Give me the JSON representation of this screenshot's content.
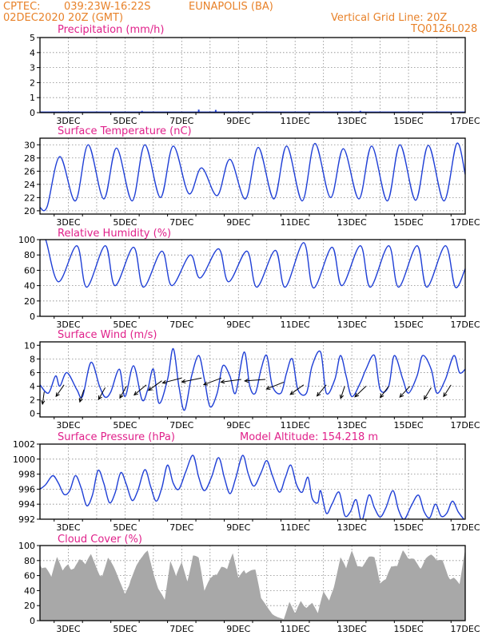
{
  "header": {
    "source": "CPTEC:",
    "coords": "039:23W-16:22S",
    "location": "EUNAPOLIS (BA)",
    "datetime": "02DEC2020 20Z (GMT)",
    "grid_note": "Vertical Grid Line: 20Z",
    "code": "TQ0126L028"
  },
  "colors": {
    "header_text": "#e8822a",
    "title_text": "#e0208a",
    "series_line": "#1f3fd6",
    "cloud_fill": "#a8a8a8",
    "wind_arrow": "#000000"
  },
  "chart_data": [
    {
      "type": "bar",
      "title": "Precipitation (mm/h)",
      "ylim": [
        0,
        5
      ],
      "yticks": [
        "0",
        "1",
        "2",
        "3",
        "4",
        "5"
      ],
      "grid": true,
      "x_labels": [
        "3DEC",
        "5DEC",
        "7DEC",
        "9DEC",
        "11DEC",
        "13DEC",
        "15DEC",
        "17DEC"
      ],
      "spikes": [
        {
          "day": 5.6,
          "value": 0.12
        },
        {
          "day": 7.6,
          "value": 0.2
        },
        {
          "day": 8.2,
          "value": 0.18
        },
        {
          "day": 13.3,
          "value": 0.12
        }
      ],
      "series_values": [
        0,
        0.05,
        0.03,
        0.04,
        0.05,
        0.03,
        0.04,
        0.05,
        0.03,
        0.04,
        0.05,
        0.04,
        0.05,
        0.04,
        0.05,
        0.03
      ]
    },
    {
      "type": "line",
      "title": "Surface Temperature (nC)",
      "ylim": [
        19.5,
        31
      ],
      "yticks": [
        "20",
        "22",
        "24",
        "26",
        "28",
        "30"
      ],
      "grid": true,
      "x_labels": [
        "3DEC",
        "5DEC",
        "7DEC",
        "9DEC",
        "11DEC",
        "13DEC",
        "15DEC",
        "17DEC"
      ],
      "max_days": [
        2.7,
        3.7,
        4.7,
        5.7,
        6.7,
        7.7,
        8.7,
        9.7,
        10.7,
        11.7,
        12.7,
        13.7,
        14.7,
        15.7,
        16.7
      ],
      "max_values": [
        28.2,
        30.0,
        29.5,
        30.0,
        29.8,
        26.5,
        27.8,
        29.6,
        29.8,
        30.2,
        29.4,
        29.8,
        30.0,
        29.9,
        30.2
      ],
      "min_days": [
        2.25,
        3.25,
        4.25,
        5.25,
        6.25,
        7.25,
        8.25,
        9.25,
        10.25,
        11.25,
        12.25,
        13.25,
        14.25,
        15.25,
        16.25
      ],
      "min_values": [
        20.6,
        21.5,
        21.8,
        21.5,
        22.0,
        22.6,
        22.3,
        21.8,
        21.8,
        21.5,
        22.0,
        21.8,
        21.5,
        21.6,
        21.5
      ],
      "start": {
        "day": 2.0,
        "value": 20.5
      },
      "end": {
        "day": 17.0,
        "value": 25.5
      }
    },
    {
      "type": "line",
      "title": "Relative Humidity (%)",
      "ylim": [
        0,
        100
      ],
      "yticks": [
        "0",
        "20",
        "40",
        "60",
        "80",
        "100"
      ],
      "grid": true,
      "x_labels": [
        "3DEC",
        "5DEC",
        "7DEC",
        "9DEC",
        "11DEC",
        "13DEC",
        "15DEC",
        "17DEC"
      ],
      "max_days": [
        2.2,
        3.3,
        4.3,
        5.3,
        6.3,
        7.3,
        8.3,
        9.3,
        10.3,
        11.3,
        12.3,
        13.3,
        14.3,
        15.3,
        16.3
      ],
      "max_values": [
        100,
        92,
        92,
        90,
        85,
        80,
        88,
        85,
        86,
        96,
        90,
        92,
        92,
        92,
        92
      ],
      "min_days": [
        2.65,
        3.65,
        4.65,
        5.65,
        6.65,
        7.65,
        8.65,
        9.65,
        10.65,
        11.65,
        12.65,
        13.65,
        14.65,
        15.65,
        16.65
      ],
      "min_values": [
        45,
        38,
        40,
        38,
        40,
        50,
        45,
        38,
        38,
        37,
        40,
        38,
        38,
        38,
        38
      ],
      "start": {
        "day": 2.0,
        "value": 100
      },
      "end": {
        "day": 17.0,
        "value": 62
      }
    },
    {
      "type": "line",
      "title": "Surface Wind (m/s)",
      "ylim": [
        -0.5,
        10.5
      ],
      "yticks": [
        "0",
        "2",
        "4",
        "6",
        "8",
        "10"
      ],
      "grid": true,
      "x_labels": [
        "3DEC",
        "5DEC",
        "7DEC",
        "9DEC",
        "11DEC",
        "13DEC",
        "15DEC",
        "17DEC"
      ],
      "points": [
        [
          2.0,
          4.2
        ],
        [
          2.3,
          3.0
        ],
        [
          2.55,
          5.5
        ],
        [
          2.7,
          4.0
        ],
        [
          2.95,
          6.0
        ],
        [
          3.3,
          3.5
        ],
        [
          3.5,
          2.5
        ],
        [
          3.8,
          7.5
        ],
        [
          4.1,
          4.0
        ],
        [
          4.3,
          2.4
        ],
        [
          4.5,
          3.2
        ],
        [
          4.8,
          6.5
        ],
        [
          5.0,
          2.5
        ],
        [
          5.3,
          7.0
        ],
        [
          5.6,
          2.0
        ],
        [
          5.8,
          3.5
        ],
        [
          6.0,
          6.5
        ],
        [
          6.2,
          1.5
        ],
        [
          6.5,
          5.0
        ],
        [
          6.7,
          9.5
        ],
        [
          6.9,
          4.0
        ],
        [
          7.1,
          0.5
        ],
        [
          7.35,
          5.5
        ],
        [
          7.6,
          8.5
        ],
        [
          7.8,
          5.0
        ],
        [
          8.0,
          1.0
        ],
        [
          8.25,
          3.0
        ],
        [
          8.45,
          7.0
        ],
        [
          8.7,
          5.5
        ],
        [
          8.9,
          3.0
        ],
        [
          9.2,
          9.0
        ],
        [
          9.4,
          4.0
        ],
        [
          9.6,
          3.0
        ],
        [
          9.8,
          6.5
        ],
        [
          10.0,
          8.5
        ],
        [
          10.2,
          4.0
        ],
        [
          10.5,
          3.0
        ],
        [
          10.7,
          6.0
        ],
        [
          10.9,
          8.0
        ],
        [
          11.1,
          3.5
        ],
        [
          11.4,
          3.0
        ],
        [
          11.6,
          7.0
        ],
        [
          11.9,
          9.0
        ],
        [
          12.1,
          3.0
        ],
        [
          12.4,
          5.0
        ],
        [
          12.6,
          8.5
        ],
        [
          12.8,
          5.5
        ],
        [
          13.0,
          2.5
        ],
        [
          13.3,
          4.5
        ],
        [
          13.5,
          6.5
        ],
        [
          13.8,
          8.5
        ],
        [
          14.0,
          3.5
        ],
        [
          14.3,
          4.0
        ],
        [
          14.5,
          8.5
        ],
        [
          14.8,
          5.0
        ],
        [
          15.0,
          3.0
        ],
        [
          15.3,
          5.5
        ],
        [
          15.5,
          8.5
        ],
        [
          15.8,
          6.5
        ],
        [
          16.0,
          3.0
        ],
        [
          16.3,
          5.0
        ],
        [
          16.6,
          8.5
        ],
        [
          16.8,
          6.0
        ],
        [
          17.0,
          6.5
        ]
      ],
      "arrows": [
        {
          "day": 2.15,
          "value": 3.2,
          "dx": -0.1,
          "dy": -1.2
        },
        {
          "day": 2.85,
          "value": 4.2,
          "dx": -0.5,
          "dy": -1.2
        },
        {
          "day": 3.55,
          "value": 3.5,
          "dx": -0.2,
          "dy": -1.0
        },
        {
          "day": 4.3,
          "value": 3.8,
          "dx": -0.4,
          "dy": -1.2
        },
        {
          "day": 5.05,
          "value": 4.0,
          "dx": -0.3,
          "dy": -0.9
        },
        {
          "day": 5.75,
          "value": 4.2,
          "dx": -0.5,
          "dy": -0.7
        },
        {
          "day": 6.3,
          "value": 4.8,
          "dx": -0.5,
          "dy": -0.6
        },
        {
          "day": 7.0,
          "value": 5.2,
          "dx": -0.7,
          "dy": -0.3
        },
        {
          "day": 7.7,
          "value": 5.2,
          "dx": -0.9,
          "dy": -0.3
        },
        {
          "day": 8.4,
          "value": 5.2,
          "dx": -0.8,
          "dy": -0.5
        },
        {
          "day": 9.1,
          "value": 5.0,
          "dx": -0.9,
          "dy": -0.2
        },
        {
          "day": 9.95,
          "value": 5.0,
          "dx": -0.8,
          "dy": -0.1
        },
        {
          "day": 10.6,
          "value": 4.6,
          "dx": -0.6,
          "dy": -0.4
        },
        {
          "day": 11.3,
          "value": 4.2,
          "dx": -0.5,
          "dy": -0.6
        },
        {
          "day": 12.1,
          "value": 4.2,
          "dx": -0.4,
          "dy": -0.8
        },
        {
          "day": 12.75,
          "value": 4.0,
          "dx": -0.2,
          "dy": -1.0
        },
        {
          "day": 13.5,
          "value": 4.0,
          "dx": -0.5,
          "dy": -0.8
        },
        {
          "day": 14.3,
          "value": 4.0,
          "dx": -0.4,
          "dy": -0.9
        },
        {
          "day": 15.05,
          "value": 4.0,
          "dx": -0.5,
          "dy": -0.9
        },
        {
          "day": 15.8,
          "value": 3.8,
          "dx": -0.4,
          "dy": -1.1
        },
        {
          "day": 16.5,
          "value": 4.2,
          "dx": -0.5,
          "dy": -1.3
        }
      ]
    },
    {
      "type": "line",
      "title": "Surface Pressure (hPa)",
      "annotation": "Model Altitude: 154.218 m",
      "ylim": [
        992,
        1002
      ],
      "yticks": [
        "992",
        "994",
        "996",
        "998",
        "1000",
        "1002"
      ],
      "grid": true,
      "x_labels": [
        "3DEC",
        "5DEC",
        "7DEC",
        "9DEC",
        "11DEC",
        "13DEC",
        "15DEC",
        "17DEC"
      ],
      "points": [
        [
          2.0,
          996.0
        ],
        [
          2.2,
          996.6
        ],
        [
          2.45,
          997.8
        ],
        [
          2.65,
          996.8
        ],
        [
          2.85,
          995.3
        ],
        [
          3.05,
          995.8
        ],
        [
          3.25,
          997.8
        ],
        [
          3.45,
          996.2
        ],
        [
          3.65,
          993.8
        ],
        [
          3.85,
          995.2
        ],
        [
          4.05,
          998.5
        ],
        [
          4.25,
          996.8
        ],
        [
          4.45,
          994.2
        ],
        [
          4.65,
          995.5
        ],
        [
          4.85,
          998.2
        ],
        [
          5.05,
          996.6
        ],
        [
          5.25,
          994.5
        ],
        [
          5.45,
          995.8
        ],
        [
          5.7,
          998.6
        ],
        [
          5.9,
          996.4
        ],
        [
          6.1,
          994.4
        ],
        [
          6.3,
          996.2
        ],
        [
          6.5,
          999.2
        ],
        [
          6.7,
          996.8
        ],
        [
          6.9,
          996.0
        ],
        [
          7.15,
          998.4
        ],
        [
          7.4,
          1000.5
        ],
        [
          7.6,
          997.6
        ],
        [
          7.8,
          995.8
        ],
        [
          8.05,
          997.6
        ],
        [
          8.3,
          1000.2
        ],
        [
          8.5,
          997.6
        ],
        [
          8.7,
          995.4
        ],
        [
          8.9,
          997.4
        ],
        [
          9.15,
          1000.5
        ],
        [
          9.35,
          998.0
        ],
        [
          9.55,
          996.4
        ],
        [
          9.8,
          998.2
        ],
        [
          10.0,
          999.8
        ],
        [
          10.2,
          997.8
        ],
        [
          10.45,
          995.6
        ],
        [
          10.65,
          997.5
        ],
        [
          10.85,
          999.2
        ],
        [
          11.05,
          996.6
        ],
        [
          11.25,
          995.6
        ],
        [
          11.45,
          997.6
        ],
        [
          11.6,
          994.8
        ],
        [
          11.8,
          994.2
        ],
        [
          11.9,
          995.8
        ],
        [
          12.1,
          992.8
        ],
        [
          12.3,
          994.0
        ],
        [
          12.55,
          995.6
        ],
        [
          12.75,
          992.5
        ],
        [
          12.95,
          993.0
        ],
        [
          13.15,
          994.6
        ],
        [
          13.35,
          991.8
        ],
        [
          13.6,
          995.2
        ],
        [
          13.8,
          993.5
        ],
        [
          14.0,
          992.3
        ],
        [
          14.2,
          993.5
        ],
        [
          14.45,
          995.8
        ],
        [
          14.65,
          993.2
        ],
        [
          14.85,
          992.0
        ],
        [
          15.1,
          993.8
        ],
        [
          15.35,
          995.2
        ],
        [
          15.55,
          993.0
        ],
        [
          15.75,
          992.2
        ],
        [
          15.95,
          994.0
        ],
        [
          16.15,
          992.4
        ],
        [
          16.35,
          992.8
        ],
        [
          16.55,
          994.4
        ],
        [
          16.75,
          993.0
        ],
        [
          16.95,
          992.0
        ]
      ]
    },
    {
      "type": "area",
      "title": "Cloud Cover (%)",
      "ylim": [
        0,
        100
      ],
      "yticks": [
        "0",
        "20",
        "40",
        "60",
        "80",
        "100"
      ],
      "grid": true,
      "x_labels": [
        "3DEC",
        "5DEC",
        "7DEC",
        "9DEC",
        "11DEC",
        "13DEC",
        "15DEC",
        "17DEC"
      ],
      "points": [
        [
          2.0,
          90
        ],
        [
          2.2,
          80
        ],
        [
          2.4,
          60
        ],
        [
          2.6,
          85
        ],
        [
          2.8,
          70
        ],
        [
          3.0,
          88
        ],
        [
          3.2,
          80
        ],
        [
          3.4,
          85
        ],
        [
          3.6,
          75
        ],
        [
          3.8,
          92
        ],
        [
          4.0,
          80
        ],
        [
          4.2,
          70
        ],
        [
          4.4,
          88
        ],
        [
          4.6,
          72
        ],
        [
          4.8,
          55
        ],
        [
          5.0,
          40
        ],
        [
          5.2,
          65
        ],
        [
          5.4,
          78
        ],
        [
          5.6,
          85
        ],
        [
          5.8,
          95
        ],
        [
          6.0,
          70
        ],
        [
          6.2,
          50
        ],
        [
          6.4,
          30
        ],
        [
          6.6,
          80
        ],
        [
          6.8,
          60
        ],
        [
          7.0,
          85
        ],
        [
          7.2,
          65
        ],
        [
          7.4,
          95
        ],
        [
          7.6,
          85
        ],
        [
          7.8,
          40
        ],
        [
          8.0,
          60
        ],
        [
          8.2,
          75
        ],
        [
          8.4,
          80
        ],
        [
          8.6,
          70
        ],
        [
          8.8,
          90
        ],
        [
          9.0,
          60
        ],
        [
          9.2,
          80
        ],
        [
          9.4,
          75
        ],
        [
          9.6,
          70
        ],
        [
          9.8,
          30
        ],
        [
          10.0,
          20
        ],
        [
          10.2,
          10
        ],
        [
          10.4,
          5
        ],
        [
          10.6,
          2
        ],
        [
          10.8,
          25
        ],
        [
          11.0,
          10
        ],
        [
          11.2,
          30
        ],
        [
          11.4,
          20
        ],
        [
          11.6,
          25
        ],
        [
          11.8,
          10
        ],
        [
          12.0,
          40
        ],
        [
          12.2,
          30
        ],
        [
          12.4,
          60
        ],
        [
          12.6,
          90
        ],
        [
          12.8,
          70
        ],
        [
          13.0,
          95
        ],
        [
          13.2,
          80
        ],
        [
          13.4,
          90
        ],
        [
          13.6,
          92
        ],
        [
          13.8,
          85
        ],
        [
          14.0,
          50
        ],
        [
          14.2,
          60
        ],
        [
          14.4,
          90
        ],
        [
          14.6,
          80
        ],
        [
          14.8,
          95
        ],
        [
          15.0,
          82
        ],
        [
          15.2,
          88
        ],
        [
          15.4,
          85
        ],
        [
          15.6,
          92
        ],
        [
          15.8,
          90
        ],
        [
          16.0,
          80
        ],
        [
          16.2,
          85
        ],
        [
          16.4,
          70
        ],
        [
          16.6,
          65
        ],
        [
          16.8,
          50
        ],
        [
          17.0,
          95
        ]
      ]
    }
  ]
}
